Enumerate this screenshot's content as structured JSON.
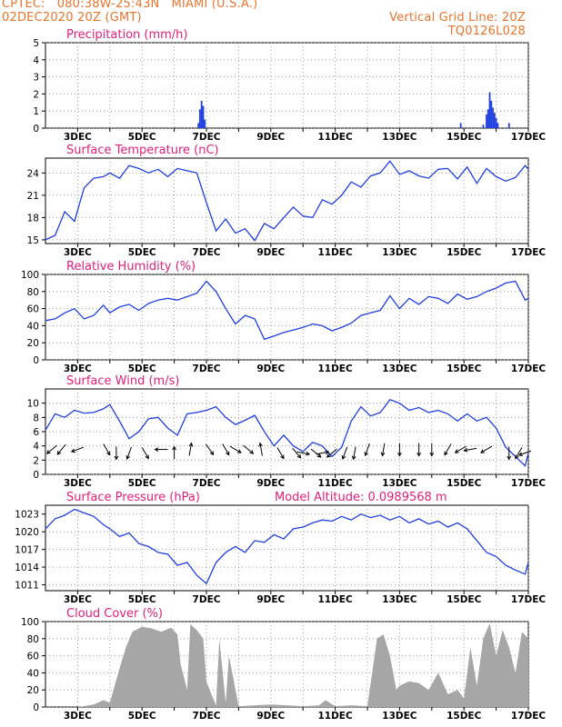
{
  "header": {
    "line1": "CPTEC:   080:38W-25:43N   MIAMI (U.S.A.)",
    "line2": "02DEC2020 20Z (GMT)",
    "grid_note": "Vertical Grid Line: 20Z",
    "model_id": "TQ0126L028"
  },
  "x_ticks": [
    "3DEC",
    "5DEC",
    "7DEC",
    "9DEC",
    "11DEC",
    "13DEC",
    "15DEC",
    "17DEC"
  ],
  "colors": {
    "header": "#e8742b",
    "title": "#e0207a",
    "series": "#1f3fe0",
    "cloud": "#a6a6a6",
    "arrow": "#000000"
  },
  "chart_data": [
    {
      "type": "bar",
      "title": "Precipitation (mm/h)",
      "ylim": [
        0,
        5
      ],
      "yticks": [
        0,
        1,
        2,
        3,
        4,
        5
      ],
      "events": [
        {
          "x": 6.75,
          "value": 0.3
        },
        {
          "x": 6.8,
          "value": 1.1
        },
        {
          "x": 6.85,
          "value": 1.6
        },
        {
          "x": 6.9,
          "value": 1.3
        },
        {
          "x": 6.95,
          "value": 0.5
        },
        {
          "x": 14.9,
          "value": 0.3
        },
        {
          "x": 15.6,
          "value": 0.2
        },
        {
          "x": 15.7,
          "value": 0.8
        },
        {
          "x": 15.75,
          "value": 1.1
        },
        {
          "x": 15.8,
          "value": 2.1
        },
        {
          "x": 15.85,
          "value": 1.6
        },
        {
          "x": 15.9,
          "value": 1.2
        },
        {
          "x": 15.95,
          "value": 0.9
        },
        {
          "x": 16.0,
          "value": 0.6
        },
        {
          "x": 16.05,
          "value": 0.3
        },
        {
          "x": 16.4,
          "value": 0.3
        }
      ]
    },
    {
      "type": "line",
      "title": "Surface Temperature (nC)",
      "ylim": [
        14.5,
        26
      ],
      "yticks": [
        15,
        18,
        21,
        24
      ],
      "x": [
        2.0,
        2.3,
        2.6,
        2.9,
        3.2,
        3.5,
        3.8,
        4.0,
        4.3,
        4.6,
        4.9,
        5.2,
        5.5,
        5.8,
        6.1,
        6.4,
        6.7,
        7.0,
        7.3,
        7.6,
        7.9,
        8.2,
        8.5,
        8.8,
        9.1,
        9.4,
        9.7,
        10.0,
        10.3,
        10.6,
        10.9,
        11.2,
        11.5,
        11.8,
        12.1,
        12.4,
        12.7,
        13.0,
        13.3,
        13.6,
        13.9,
        14.2,
        14.5,
        14.8,
        15.1,
        15.4,
        15.7,
        16.0,
        16.3,
        16.6,
        16.9,
        17.0
      ],
      "values": [
        15.0,
        15.6,
        18.8,
        17.5,
        22.0,
        23.3,
        23.5,
        24.0,
        23.3,
        25.0,
        24.6,
        24.0,
        24.5,
        23.5,
        24.6,
        24.3,
        24.0,
        20.0,
        16.2,
        17.8,
        15.9,
        16.5,
        14.9,
        17.2,
        16.5,
        18.0,
        19.4,
        18.2,
        18.0,
        20.4,
        19.8,
        21.0,
        22.8,
        22.1,
        23.6,
        24.0,
        25.6,
        23.8,
        24.3,
        23.6,
        23.3,
        24.5,
        24.6,
        23.2,
        24.8,
        22.6,
        24.6,
        23.5,
        22.9,
        23.4,
        25.0,
        24.5
      ]
    },
    {
      "type": "line",
      "title": "Relative Humidity (%)",
      "ylim": [
        0,
        100
      ],
      "yticks": [
        0,
        20,
        40,
        60,
        80,
        100
      ],
      "x": [
        2.0,
        2.3,
        2.6,
        2.9,
        3.2,
        3.5,
        3.8,
        4.0,
        4.3,
        4.6,
        4.9,
        5.2,
        5.5,
        5.8,
        6.1,
        6.4,
        6.7,
        7.0,
        7.3,
        7.6,
        7.9,
        8.2,
        8.5,
        8.8,
        9.1,
        9.4,
        9.7,
        10.0,
        10.3,
        10.6,
        10.9,
        11.2,
        11.5,
        11.8,
        12.1,
        12.4,
        12.7,
        13.0,
        13.3,
        13.6,
        13.9,
        14.2,
        14.5,
        14.8,
        15.1,
        15.4,
        15.7,
        16.0,
        16.3,
        16.6,
        16.9,
        17.0
      ],
      "values": [
        46,
        48,
        55,
        60,
        48,
        52,
        64,
        55,
        62,
        65,
        58,
        66,
        70,
        72,
        70,
        74,
        78,
        92,
        80,
        60,
        42,
        52,
        48,
        24,
        28,
        32,
        35,
        38,
        42,
        40,
        34,
        38,
        43,
        52,
        55,
        58,
        75,
        60,
        72,
        65,
        74,
        72,
        66,
        77,
        71,
        74,
        80,
        84,
        90,
        92,
        70,
        72
      ]
    },
    {
      "type": "line",
      "title": "Surface Wind (m/s)",
      "ylim": [
        0,
        12
      ],
      "yticks": [
        0,
        2,
        4,
        6,
        8,
        10
      ],
      "x": [
        2.0,
        2.3,
        2.6,
        2.9,
        3.2,
        3.5,
        3.8,
        4.0,
        4.3,
        4.6,
        4.9,
        5.2,
        5.5,
        5.8,
        6.1,
        6.4,
        6.7,
        7.0,
        7.3,
        7.6,
        7.9,
        8.2,
        8.5,
        8.8,
        9.1,
        9.4,
        9.7,
        10.0,
        10.3,
        10.6,
        10.9,
        11.2,
        11.5,
        11.8,
        12.1,
        12.4,
        12.7,
        13.0,
        13.3,
        13.6,
        13.9,
        14.2,
        14.5,
        14.8,
        15.1,
        15.4,
        15.7,
        16.0,
        16.3,
        16.6,
        16.9,
        17.0
      ],
      "values": [
        6.2,
        8.5,
        8.0,
        9.0,
        8.6,
        8.7,
        9.2,
        9.8,
        7.5,
        5.0,
        6.0,
        7.8,
        8.0,
        6.5,
        5.5,
        8.5,
        8.7,
        9.0,
        9.5,
        8.0,
        7.0,
        7.6,
        8.3,
        6.0,
        4.0,
        5.5,
        4.0,
        3.2,
        4.5,
        4.0,
        2.5,
        3.8,
        7.5,
        9.5,
        8.2,
        8.7,
        10.5,
        10.0,
        9.0,
        9.4,
        8.7,
        9.0,
        8.5,
        7.5,
        8.5,
        7.5,
        8.0,
        6.5,
        3.8,
        2.5,
        1.2,
        3.0
      ]
    },
    {
      "type": "line",
      "title": "Surface Pressure (hPa)",
      "ylim": [
        1010,
        1024.5
      ],
      "yticks": [
        1011,
        1014,
        1017,
        1020,
        1023
      ],
      "x": [
        2.0,
        2.3,
        2.6,
        2.9,
        3.2,
        3.5,
        3.8,
        4.0,
        4.3,
        4.6,
        4.9,
        5.2,
        5.5,
        5.8,
        6.1,
        6.4,
        6.7,
        7.0,
        7.3,
        7.6,
        7.9,
        8.2,
        8.5,
        8.8,
        9.1,
        9.4,
        9.7,
        10.0,
        10.3,
        10.6,
        10.9,
        11.2,
        11.5,
        11.8,
        12.1,
        12.4,
        12.7,
        13.0,
        13.3,
        13.6,
        13.9,
        14.2,
        14.5,
        14.8,
        15.1,
        15.4,
        15.7,
        16.0,
        16.3,
        16.6,
        16.9,
        17.0
      ],
      "values": [
        1020.5,
        1022.2,
        1022.8,
        1023.8,
        1023.2,
        1022.6,
        1021.2,
        1020.5,
        1019.2,
        1019.8,
        1018.0,
        1017.5,
        1016.5,
        1016.2,
        1014.3,
        1014.8,
        1012.6,
        1011.2,
        1014.8,
        1016.5,
        1017.5,
        1016.5,
        1018.5,
        1018.2,
        1019.5,
        1018.8,
        1020.5,
        1020.8,
        1021.5,
        1022.0,
        1021.8,
        1022.6,
        1022.0,
        1023.0,
        1022.4,
        1022.8,
        1022.0,
        1022.6,
        1021.5,
        1022.2,
        1021.3,
        1021.8,
        1020.8,
        1021.5,
        1020.5,
        1018.5,
        1016.5,
        1015.8,
        1014.3,
        1013.5,
        1012.8,
        1014.8
      ]
    },
    {
      "type": "area",
      "title": "Cloud Cover (%)",
      "ylim": [
        0,
        100
      ],
      "yticks": [
        0,
        20,
        40,
        60,
        80,
        100
      ],
      "x": [
        3.0,
        3.5,
        3.8,
        4.0,
        4.3,
        4.5,
        4.7,
        5.0,
        5.3,
        5.6,
        5.9,
        6.1,
        6.2,
        6.4,
        6.5,
        6.7,
        6.9,
        7.0,
        7.1,
        7.3,
        7.4,
        7.6,
        7.7,
        8.0,
        8.5,
        9.0,
        9.5,
        10.0,
        10.5,
        10.7,
        11.0,
        11.5,
        12.0,
        12.3,
        12.5,
        12.7,
        12.9,
        13.0,
        13.3,
        13.6,
        13.9,
        14.2,
        14.5,
        14.8,
        15.0,
        15.2,
        15.4,
        15.6,
        15.8,
        16.0,
        16.2,
        16.4,
        16.6,
        16.8,
        17.0
      ],
      "values": [
        0,
        3,
        8,
        5,
        45,
        70,
        88,
        94,
        92,
        88,
        93,
        85,
        50,
        20,
        97,
        90,
        80,
        30,
        20,
        2,
        80,
        5,
        60,
        1,
        2,
        3,
        2,
        1,
        2,
        8,
        1,
        2,
        1,
        80,
        85,
        60,
        20,
        25,
        30,
        28,
        20,
        40,
        15,
        20,
        10,
        70,
        25,
        80,
        98,
        60,
        90,
        70,
        40,
        88,
        80
      ]
    }
  ],
  "wind_arrows": {
    "x": [
      2.2,
      2.5,
      3.0,
      3.9,
      4.2,
      4.6,
      5.1,
      5.6,
      6.0,
      6.5,
      7.1,
      7.6,
      7.9,
      8.3,
      8.7,
      9.3,
      9.8,
      10.0,
      10.4,
      10.6,
      10.9,
      11.3,
      11.6,
      12.0,
      12.5,
      13.0,
      13.6,
      14.0,
      14.5,
      14.9,
      15.2,
      15.7,
      16.4,
      16.7,
      16.9
    ],
    "dir_deg": [
      220,
      230,
      200,
      300,
      270,
      250,
      300,
      180,
      90,
      80,
      305,
      300,
      330,
      320,
      100,
      300,
      310,
      350,
      320,
      10,
      220,
      250,
      260,
      250,
      260,
      270,
      270,
      270,
      240,
      210,
      190,
      210,
      270,
      240,
      200
    ],
    "speed": [
      6.2,
      7.0,
      8.5,
      8.0,
      6.0,
      5.0,
      5.5,
      6.5,
      5.5,
      6.5,
      8.5,
      6.5,
      7.0,
      7.5,
      6.5,
      6.0,
      4.0,
      3.2,
      4.5,
      4.0,
      2.5,
      4.5,
      6.0,
      8.0,
      8.3,
      8.7,
      10.0,
      9.0,
      8.5,
      8.0,
      7.5,
      6.5,
      5.0,
      3.8,
      2.0
    ]
  },
  "model_altitude": "Model Altitude: 0.0989568 m"
}
